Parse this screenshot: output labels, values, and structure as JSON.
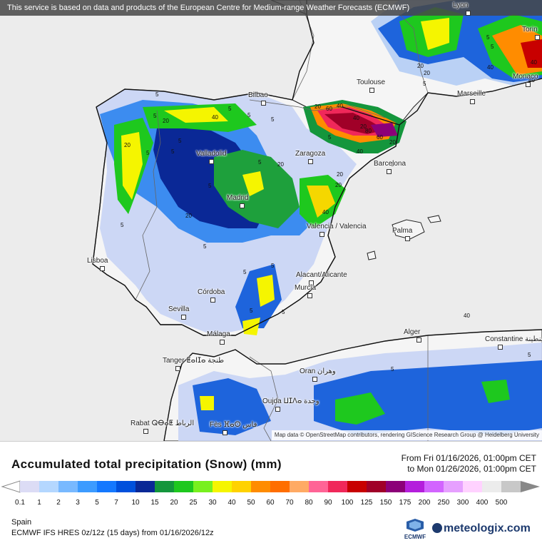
{
  "notice": "This service is based on data and products of the European Centre for Medium-range Weather Forecasts (ECMWF)",
  "attribution": "Map data © OpenStreetMap contributors, rendering GIScience Research Group @ Heidelberg University",
  "cities": [
    {
      "name": "Lyon",
      "label": "Lyon"
    },
    {
      "name": "torino",
      "label": "Torin"
    },
    {
      "name": "toulouse",
      "label": "Toulouse"
    },
    {
      "name": "marseille",
      "label": "Marseille"
    },
    {
      "name": "monaco",
      "label": "Monaco"
    },
    {
      "name": "bilbao",
      "label": "Bilbao"
    },
    {
      "name": "valladolid",
      "label": "Valladolid"
    },
    {
      "name": "zaragoza",
      "label": "Zaragoza"
    },
    {
      "name": "barcelona",
      "label": "Barcelona"
    },
    {
      "name": "madrid",
      "label": "Madrid"
    },
    {
      "name": "valencia",
      "label": "Valencia / Valencia"
    },
    {
      "name": "palma",
      "label": "Palma"
    },
    {
      "name": "lisboa",
      "label": "Lisboa"
    },
    {
      "name": "alicante",
      "label": "Alacant/Alicante"
    },
    {
      "name": "cordoba",
      "label": "Córdoba"
    },
    {
      "name": "murcia",
      "label": "Murcia"
    },
    {
      "name": "sevilla",
      "label": "Sevilla"
    },
    {
      "name": "alger",
      "label": "Alger"
    },
    {
      "name": "constantine",
      "label": "Constantine قسنطينة"
    },
    {
      "name": "malaga",
      "label": "Málaga"
    },
    {
      "name": "tanger",
      "label": "Tanger ⵟⴰⵏⵊⴰ طنجة"
    },
    {
      "name": "oran",
      "label": "Oran وهران"
    },
    {
      "name": "oujda",
      "label": "Oujda ⵡⵊⴷⴰ وجدة"
    },
    {
      "name": "rabat",
      "label": "Rabat ⵕⴱⴰⵟ الرباط"
    },
    {
      "name": "fes",
      "label": "Fès ⴼⴰⵙ فاس"
    }
  ],
  "contour_labels": [
    "5",
    "5",
    "20",
    "40",
    "5",
    "5",
    "5",
    "20",
    "5",
    "20",
    "5",
    "5",
    "5",
    "20",
    "40",
    "5",
    "20",
    "20",
    "5",
    "5",
    "5",
    "5",
    "40",
    "5",
    "5",
    "5",
    "5",
    "20",
    "60",
    "40",
    "40",
    "20",
    "80",
    "60",
    "40",
    "20",
    "5",
    "20",
    "5",
    "40",
    "40",
    "40",
    "20",
    "5",
    "5",
    "5"
  ],
  "legend": {
    "title": "Accumulated total precipitation (Snow) (mm)",
    "from": "From Fri 01/16/2026, 01:00pm CET",
    "to": "to Mon 01/26/2026, 01:00pm CET",
    "region": "Spain",
    "model": "ECMWF IFS HRES 0z/12z (15 days) from  01/16/2026/12z",
    "ecmwf_logo_text": "ECMWF",
    "brand": "meteologix.com",
    "scale_labels": [
      "0.1",
      "1",
      "2",
      "3",
      "5",
      "7",
      "10",
      "15",
      "20",
      "25",
      "30",
      "40",
      "50",
      "60",
      "70",
      "80",
      "90",
      "100",
      "125",
      "150",
      "175",
      "200",
      "250",
      "300",
      "400",
      "500"
    ],
    "scale_colors": [
      "#dcdcf5",
      "#b4d7ff",
      "#78b9ff",
      "#3c9bff",
      "#1478ff",
      "#0050dc",
      "#0a2896",
      "#14963c",
      "#1ec81e",
      "#78f01e",
      "#f5f500",
      "#ffd200",
      "#ff8c00",
      "#ff6e00",
      "#ffaa64",
      "#ff6496",
      "#f0285a",
      "#c80000",
      "#a00028",
      "#8c0078",
      "#b41edc",
      "#d264ff",
      "#e6a0ff",
      "#ffd2ff",
      "#ececec",
      "#c8c8c8"
    ]
  }
}
